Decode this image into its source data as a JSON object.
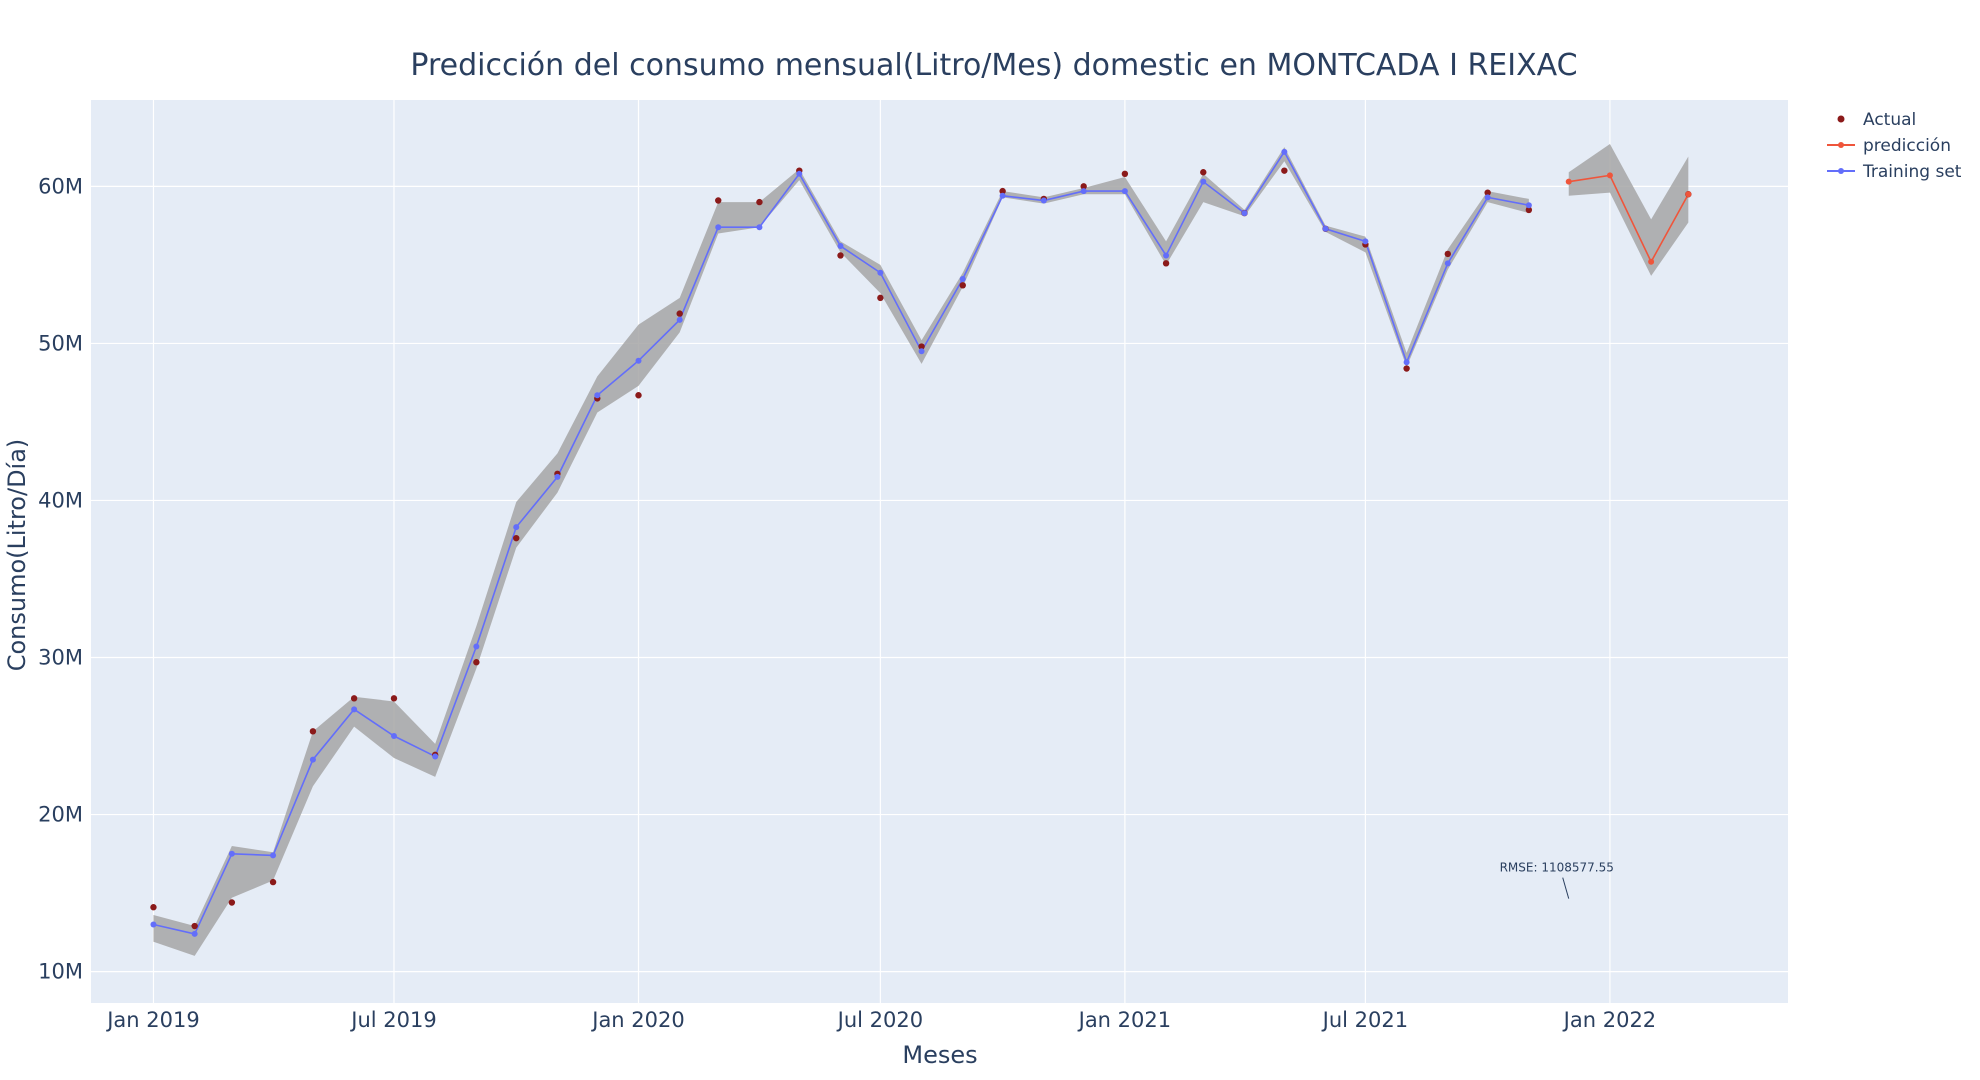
{
  "chart_data": {
    "type": "line",
    "title": "Predicción del consumo mensual(Litro/Mes) domestic en MONTCADA I REIXAC",
    "xlabel": "Meses",
    "ylabel": "Consumo(Litro/Día)",
    "x_ticks": [
      "Jan 2019",
      "Jul 2019",
      "Jan 2020",
      "Jul 2020",
      "Jan 2021",
      "Jul 2021",
      "Jan 2022"
    ],
    "y_ticks": [
      "10M",
      "20M",
      "30M",
      "40M",
      "50M",
      "60M"
    ],
    "y_tick_values": [
      10000000,
      20000000,
      30000000,
      40000000,
      50000000,
      60000000
    ],
    "xlim": [
      "2018-11-15",
      "2022-05-15"
    ],
    "ylim": [
      8000000,
      65500000
    ],
    "grid": true,
    "legend_position": "top-right",
    "annotation": "RMSE: 1108577.55",
    "annotation_x": "2021-12-01",
    "annotation_y": 15600000,
    "colors": {
      "actual": "#8B1A1A",
      "prediccion": "#EF553B",
      "training": "#636EFA",
      "band": "#A6A6A6",
      "plot_bg": "#E5ECF6",
      "text": "#2A3F5F"
    },
    "series": [
      {
        "name": "Actual",
        "mode": "markers",
        "x": [
          "2019-01-01",
          "2019-02-01",
          "2019-03-01",
          "2019-04-01",
          "2019-05-01",
          "2019-06-01",
          "2019-07-01",
          "2019-08-01",
          "2019-09-01",
          "2019-10-01",
          "2019-11-01",
          "2019-12-01",
          "2020-01-01",
          "2020-02-01",
          "2020-03-01",
          "2020-04-01",
          "2020-05-01",
          "2020-06-01",
          "2020-07-01",
          "2020-08-01",
          "2020-09-01",
          "2020-10-01",
          "2020-11-01",
          "2020-12-01",
          "2021-01-01",
          "2021-02-01",
          "2021-03-01",
          "2021-04-01",
          "2021-05-01",
          "2021-06-01",
          "2021-07-01",
          "2021-08-01",
          "2021-09-01",
          "2021-10-01",
          "2021-11-01",
          "2022-03-01"
        ],
        "y": [
          14100000,
          12900000,
          14400000,
          15700000,
          25300000,
          27400000,
          27400000,
          23800000,
          29700000,
          37600000,
          41700000,
          46500000,
          46700000,
          51900000,
          59100000,
          59000000,
          61000000,
          55600000,
          52900000,
          49800000,
          53700000,
          59700000,
          59200000,
          60000000,
          60800000,
          55100000,
          60900000,
          58300000,
          61000000,
          57300000,
          56300000,
          48400000,
          55700000,
          59600000,
          58500000,
          59500000
        ]
      },
      {
        "name": "predicción",
        "mode": "lines+markers",
        "x": [
          "2021-12-01",
          "2022-01-01",
          "2022-02-01",
          "2022-03-01"
        ],
        "y": [
          60300000,
          60700000,
          55200000,
          59500000
        ],
        "band_low": [
          59400000,
          59600000,
          54300000,
          57700000
        ],
        "band_high": [
          60900000,
          62700000,
          57900000,
          61900000
        ]
      },
      {
        "name": "Training set",
        "mode": "lines+markers",
        "x": [
          "2019-01-01",
          "2019-02-01",
          "2019-03-01",
          "2019-04-01",
          "2019-05-01",
          "2019-06-01",
          "2019-07-01",
          "2019-08-01",
          "2019-09-01",
          "2019-10-01",
          "2019-11-01",
          "2019-12-01",
          "2020-01-01",
          "2020-02-01",
          "2020-03-01",
          "2020-04-01",
          "2020-05-01",
          "2020-06-01",
          "2020-07-01",
          "2020-08-01",
          "2020-09-01",
          "2020-10-01",
          "2020-11-01",
          "2020-12-01",
          "2021-01-01",
          "2021-02-01",
          "2021-03-01",
          "2021-04-01",
          "2021-05-01",
          "2021-06-01",
          "2021-07-01",
          "2021-08-01",
          "2021-09-01",
          "2021-10-01",
          "2021-11-01"
        ],
        "y": [
          13000000,
          12400000,
          17500000,
          17400000,
          23500000,
          26700000,
          25000000,
          23700000,
          30700000,
          38300000,
          41500000,
          46700000,
          48900000,
          51500000,
          57400000,
          57400000,
          60800000,
          56200000,
          54500000,
          49500000,
          54100000,
          59400000,
          59100000,
          59700000,
          59700000,
          55600000,
          60300000,
          58300000,
          62200000,
          57300000,
          56500000,
          48800000,
          55100000,
          59300000,
          58800000
        ],
        "band_low": [
          11900000,
          11000000,
          14700000,
          15800000,
          21800000,
          25600000,
          23600000,
          22400000,
          29300000,
          37000000,
          40500000,
          45600000,
          47300000,
          50700000,
          57000000,
          57400000,
          60400000,
          55800000,
          53200000,
          48700000,
          53600000,
          59300000,
          58900000,
          59500000,
          59500000,
          55000000,
          59000000,
          58100000,
          61600000,
          57100000,
          55800000,
          48500000,
          54700000,
          59000000,
          58300000
        ],
        "band_high": [
          13600000,
          12900000,
          18000000,
          17600000,
          25300000,
          27500000,
          27200000,
          24500000,
          32000000,
          39900000,
          43000000,
          47900000,
          51200000,
          52900000,
          59000000,
          59000000,
          61100000,
          56500000,
          55000000,
          50200000,
          54500000,
          59700000,
          59300000,
          59900000,
          60600000,
          56500000,
          60800000,
          58500000,
          62500000,
          57500000,
          56800000,
          49400000,
          56000000,
          59700000,
          59200000
        ]
      }
    ]
  }
}
